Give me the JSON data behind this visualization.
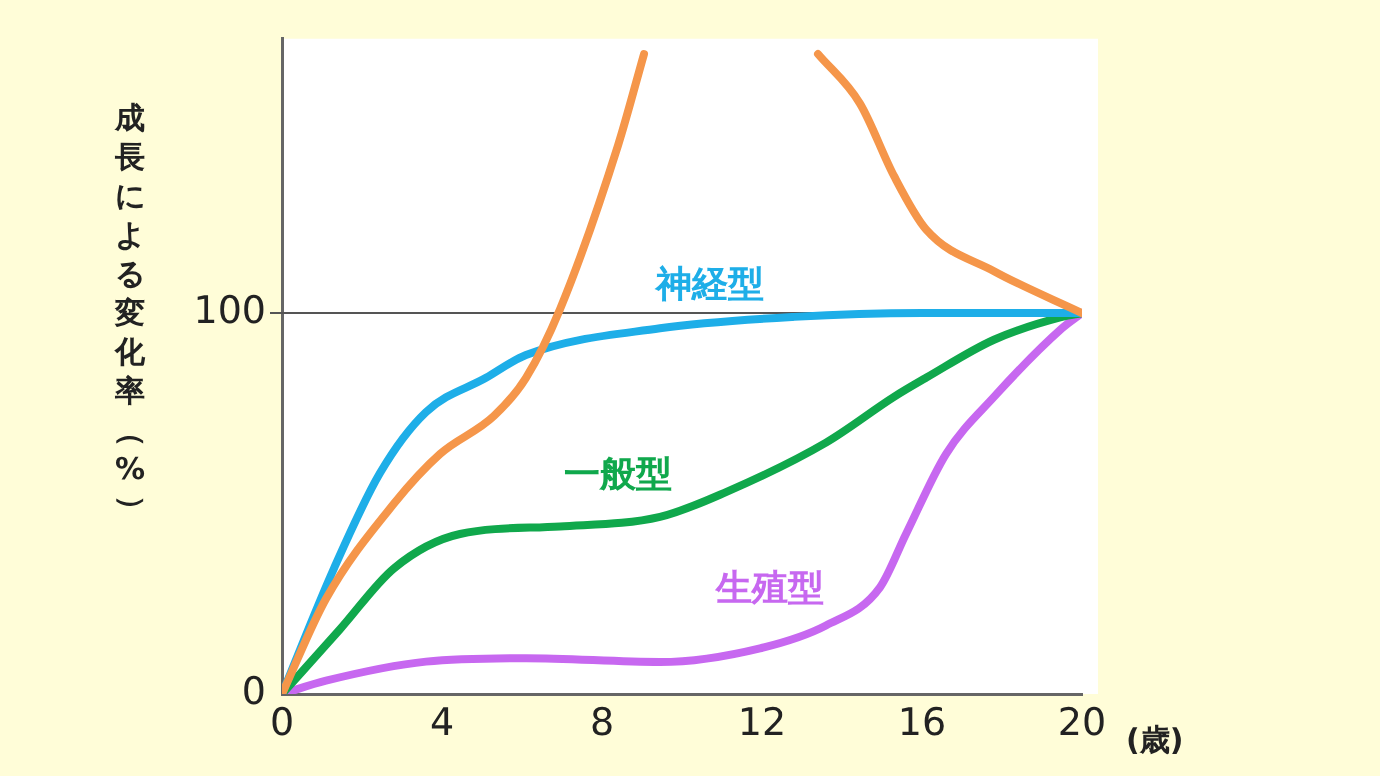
{
  "chart_data": {
    "type": "line",
    "xlabel": "(歳)",
    "ylabel": "成長による変化率（%）",
    "xlim": [
      0,
      20
    ],
    "ylim": [
      0,
      172
    ],
    "xticks": [
      0,
      4,
      8,
      12,
      16,
      20
    ],
    "yticks": [
      0,
      100
    ],
    "grid": false,
    "legend": false,
    "marker": "none",
    "line_style": "solid",
    "ref_lines": [
      {
        "axis": "y",
        "value": 100,
        "color": "#555555"
      }
    ],
    "series": [
      {
        "color": "#f5964a",
        "x": [
          0,
          1.1,
          2.8,
          3.95,
          5.3,
          6.1,
          6.95,
          8.4,
          9.05,
          11.4,
          13.4,
          14.45,
          15.3,
          16.1,
          17.8,
          20
        ],
        "values": [
          0,
          25,
          50,
          63,
          73,
          83,
          101,
          144,
          168,
          null,
          168,
          155,
          136,
          122,
          111,
          100
        ]
      },
      {
        "name": "神経型",
        "color": "#1eaee8",
        "x": [
          0,
          1.3,
          2.45,
          3.6,
          5.1,
          6.1,
          9.45,
          12.8,
          16,
          20
        ],
        "values": [
          0,
          33,
          58,
          74,
          83,
          89,
          96,
          99,
          100,
          100
        ]
      },
      {
        "name": "一般型",
        "color": "#10a84c",
        "x": [
          0,
          1.45,
          2.8,
          4.45,
          6.95,
          9.45,
          11.1,
          13.6,
          15.3,
          16.1,
          17.8,
          19.5,
          20
        ],
        "values": [
          0,
          17,
          33,
          42,
          44,
          46.5,
          53,
          66,
          78,
          83,
          93,
          99,
          100
        ]
      },
      {
        "name": "生殖型",
        "color": "#c768f0",
        "x": [
          0,
          1.1,
          3.6,
          6.1,
          9.45,
          11.95,
          13.6,
          14.95,
          15.6,
          16.6,
          17.8,
          19.5,
          20
        ],
        "values": [
          0,
          3.5,
          8.5,
          9.4,
          8.4,
          12,
          18,
          28,
          42,
          63,
          78,
          96,
          100
        ]
      }
    ]
  }
}
